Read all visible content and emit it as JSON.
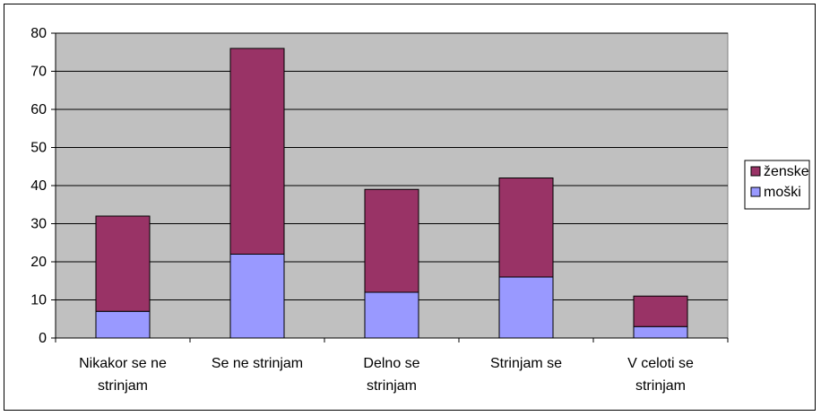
{
  "chart_data": {
    "type": "bar",
    "stacked": true,
    "categories": [
      [
        "Nikakor se ne",
        "strinjam"
      ],
      [
        "Se ne strinjam"
      ],
      [
        "Delno se",
        "strinjam"
      ],
      [
        "Strinjam se"
      ],
      [
        "V celoti se",
        "strinjam"
      ]
    ],
    "series": [
      {
        "name": "moški",
        "values": [
          7,
          22,
          12,
          16,
          3
        ],
        "color": "#9999FF"
      },
      {
        "name": "ženske",
        "values": [
          25,
          54,
          27,
          26,
          8
        ],
        "color": "#993366"
      }
    ],
    "legend_order": [
      "ženske",
      "moški"
    ],
    "legend_position": "right",
    "ylim": [
      0,
      80
    ],
    "yticks": [
      0,
      10,
      20,
      30,
      40,
      50,
      60,
      70,
      80
    ],
    "grid": true,
    "plot_background": "#C0C0C0",
    "title": "",
    "xlabel": "",
    "ylabel": ""
  }
}
